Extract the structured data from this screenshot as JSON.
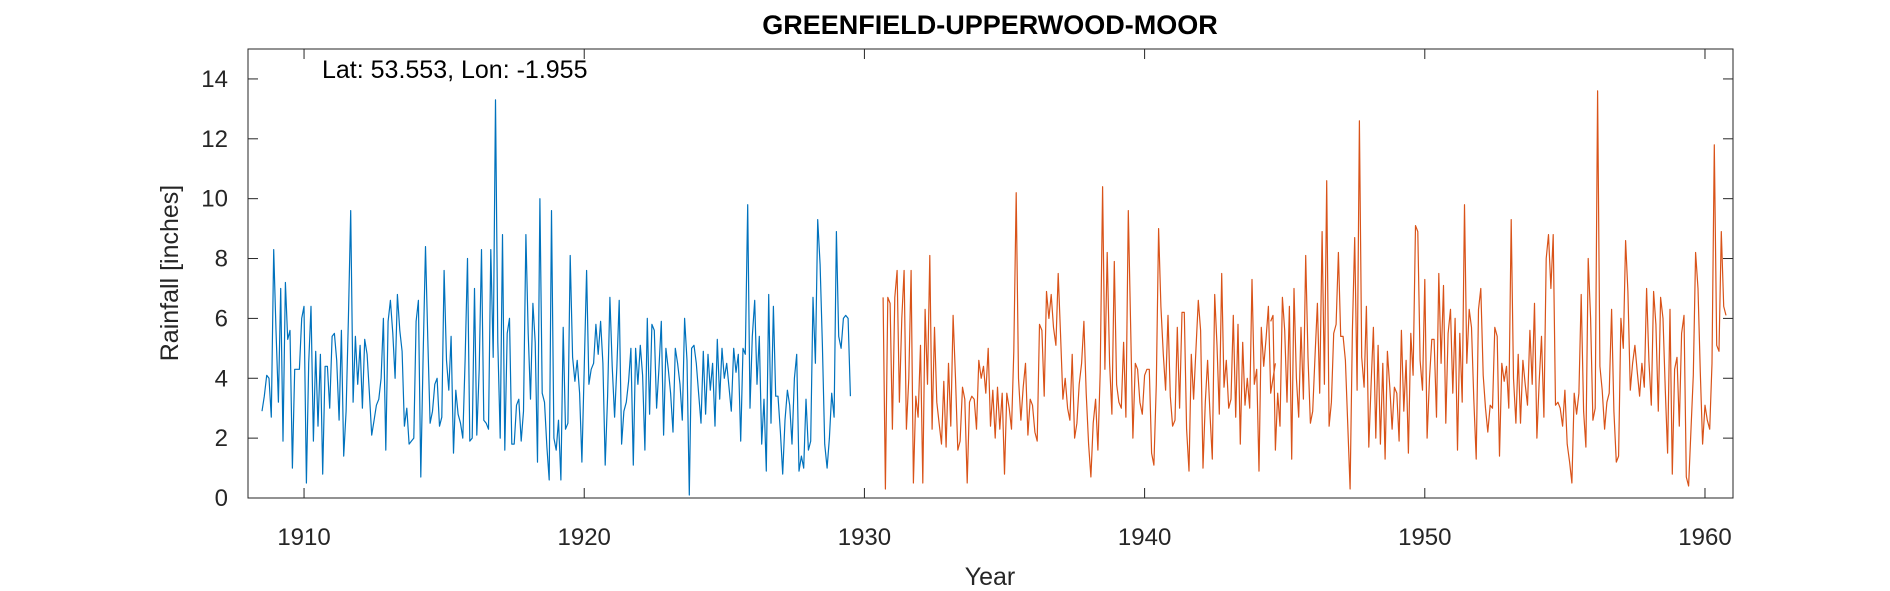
{
  "chart_data": {
    "type": "line",
    "title": "GREENFIELD-UPPERWOOD-MOOR",
    "annotation": "Lat: 53.553, Lon: -1.955",
    "xlabel": "Year",
    "ylabel": "Rainfall [inches]",
    "xlim": [
      1908.0,
      1961.0
    ],
    "ylim": [
      0,
      15
    ],
    "xticks": [
      1910,
      1920,
      1930,
      1940,
      1950,
      1960
    ],
    "yticks": [
      0,
      2,
      4,
      6,
      8,
      10,
      12,
      14
    ],
    "grid": false,
    "colors": {
      "series1": "#0072BD",
      "series2": "#D95319"
    },
    "series": [
      {
        "color": "#0072BD",
        "x_start": 1908.5,
        "x_step": 0.0833333,
        "values": [
          2.9,
          3.4,
          4.1,
          4.0,
          2.7,
          8.3,
          5.6,
          3.2,
          7.0,
          1.9,
          7.2,
          5.3,
          5.6,
          1.0,
          4.3,
          4.3,
          4.3,
          6.0,
          6.4,
          0.5,
          4.5,
          6.4,
          1.9,
          4.9,
          2.4,
          4.8,
          0.8,
          4.4,
          4.4,
          3.0,
          5.4,
          5.5,
          4.6,
          2.6,
          5.6,
          1.4,
          2.9,
          6.0,
          9.6,
          3.2,
          5.4,
          3.8,
          5.1,
          3.0,
          5.3,
          4.8,
          3.5,
          2.1,
          2.6,
          3.1,
          3.3,
          4.0,
          6.0,
          1.6,
          5.9,
          6.6,
          5.5,
          4.0,
          6.8,
          5.6,
          4.9,
          2.4,
          3.0,
          1.8,
          1.9,
          2.0,
          5.9,
          6.6,
          0.7,
          4.7,
          8.4,
          5.3,
          2.5,
          2.9,
          3.8,
          4.0,
          2.4,
          2.7,
          7.6,
          4.6,
          3.6,
          5.4,
          1.5,
          3.6,
          2.8,
          2.5,
          2.0,
          4.6,
          8.0,
          1.9,
          2.0,
          7.0,
          2.1,
          4.3,
          8.3,
          2.6,
          2.5,
          2.3,
          8.3,
          4.7,
          13.3,
          5.2,
          2.0,
          8.8,
          1.6,
          5.5,
          6.0,
          1.8,
          1.8,
          3.1,
          3.3,
          1.9,
          2.9,
          8.8,
          5.5,
          3.3,
          6.5,
          5.2,
          1.2,
          10.0,
          3.5,
          3.2,
          1.7,
          0.6,
          9.6,
          2.0,
          1.6,
          2.6,
          0.6,
          5.7,
          2.3,
          2.5,
          8.1,
          4.7,
          3.9,
          4.6,
          3.5,
          1.2,
          4.3,
          7.6,
          3.8,
          4.3,
          4.5,
          5.8,
          4.8,
          5.9,
          4.5,
          1.1,
          3.4,
          6.7,
          4.4,
          2.7,
          4.4,
          6.6,
          1.8,
          2.9,
          3.2,
          3.9,
          5.0,
          1.1,
          5.0,
          3.8,
          5.1,
          4.1,
          1.6,
          6.0,
          2.8,
          5.8,
          5.6,
          3.0,
          4.3,
          5.9,
          2.1,
          5.0,
          4.3,
          3.5,
          2.2,
          5.0,
          4.5,
          3.8,
          2.6,
          6.0,
          4.6,
          0.1,
          5.0,
          5.1,
          4.5,
          3.5,
          2.5,
          4.9,
          2.8,
          4.8,
          3.6,
          4.5,
          2.4,
          5.3,
          3.3,
          5.0,
          4.0,
          4.5,
          3.7,
          2.9,
          5.0,
          4.2,
          4.8,
          1.9,
          5.0,
          4.8,
          9.8,
          3.0,
          5.4,
          6.6,
          3.8,
          5.4,
          1.8,
          3.3,
          0.9,
          6.8,
          2.5,
          6.4,
          3.4,
          3.4,
          2.2,
          0.8,
          2.6,
          3.6,
          3.1,
          1.8,
          4.0,
          4.8,
          0.9,
          1.4,
          1.0,
          3.3,
          1.6,
          1.9,
          6.7,
          4.5,
          9.3,
          7.8,
          5.1,
          1.8,
          1.0,
          2.0,
          3.5,
          2.7,
          8.9,
          5.4,
          5.0,
          6.0,
          6.1,
          6.0,
          3.4
        ]
      },
      {
        "color": "#D95319",
        "x_start": 1930.6667,
        "x_step": 0.0833333,
        "values": [
          6.7,
          0.3,
          6.7,
          6.5,
          2.3,
          6.7,
          7.6,
          3.2,
          6.0,
          7.6,
          2.3,
          4.0,
          7.6,
          0.5,
          3.4,
          2.7,
          5.1,
          0.5,
          6.3,
          3.8,
          8.1,
          2.3,
          5.7,
          3.2,
          2.5,
          1.8,
          3.9,
          1.7,
          4.5,
          2.4,
          6.1,
          4.0,
          1.6,
          1.9,
          3.7,
          3.3,
          0.5,
          3.2,
          3.4,
          3.3,
          2.3,
          4.6,
          4.0,
          4.4,
          3.5,
          5.0,
          2.4,
          3.6,
          2.0,
          3.7,
          2.3,
          3.5,
          0.8,
          3.5,
          3.0,
          2.3,
          4.9,
          10.2,
          4.0,
          2.6,
          3.7,
          4.5,
          2.1,
          3.3,
          3.1,
          2.2,
          1.9,
          5.8,
          5.6,
          3.4,
          6.9,
          6.0,
          6.8,
          5.7,
          5.1,
          7.5,
          5.5,
          3.3,
          4.0,
          3.0,
          2.6,
          4.8,
          2.0,
          2.5,
          3.8,
          4.5,
          5.9,
          3.5,
          1.8,
          0.7,
          2.5,
          3.3,
          1.6,
          4.2,
          10.4,
          4.3,
          8.2,
          4.5,
          2.8,
          7.9,
          3.8,
          3.2,
          3.0,
          5.2,
          2.7,
          9.6,
          5.8,
          2.0,
          4.5,
          4.3,
          3.2,
          2.8,
          4.1,
          4.3,
          4.3,
          1.5,
          1.1,
          3.8,
          9.0,
          6.4,
          4.8,
          3.6,
          6.1,
          3.4,
          2.4,
          2.6,
          5.7,
          3.0,
          6.2,
          6.2,
          2.3,
          0.9,
          4.8,
          3.3,
          5.0,
          6.6,
          5.6,
          1.0,
          3.2,
          4.6,
          2.8,
          1.3,
          6.8,
          5.1,
          2.8,
          7.5,
          3.7,
          4.6,
          3.0,
          3.3,
          6.1,
          2.7,
          5.8,
          1.8,
          5.2,
          3.1,
          4.0,
          3.0,
          7.3,
          3.8,
          4.3,
          0.9,
          5.7,
          4.4,
          5.3,
          6.4,
          3.5,
          4.0,
          4.5
        ]
      },
      {
        "color": "#D95319",
        "x_start": 1944.5,
        "x_step": 0.0833333,
        "values": [
          5.9,
          6.1,
          1.6,
          3.5,
          2.4,
          6.7,
          5.6,
          3.2,
          6.4,
          1.3,
          7.0,
          4.0,
          2.7,
          5.7,
          3.3,
          8.1,
          4.7,
          2.5,
          2.9,
          4.8,
          6.5,
          3.5,
          8.9,
          3.8,
          10.6,
          2.4,
          3.2,
          5.5,
          5.8,
          8.2,
          5.4,
          5.4,
          4.6,
          2.5,
          0.3,
          5.6,
          8.7,
          3.6,
          12.6,
          4.7,
          3.7,
          6.4,
          1.7,
          3.8,
          5.7,
          2.0,
          5.1,
          1.8,
          4.5,
          1.3,
          4.9,
          3.7,
          2.3,
          3.7,
          3.5,
          1.9,
          5.6,
          2.9,
          4.6,
          1.5,
          5.5,
          4.1,
          9.1,
          8.9,
          4.6,
          3.6,
          7.3,
          2.0,
          4.0,
          5.3,
          5.3,
          2.7,
          7.5,
          4.5,
          7.1,
          2.5,
          5.5,
          6.3,
          3.5,
          6.0,
          1.6,
          5.5,
          3.2,
          9.8,
          4.5,
          6.3,
          5.7,
          3.3,
          1.3,
          6.3,
          7.0,
          4.1,
          3.0,
          2.2,
          3.1,
          3.0,
          5.7,
          5.4,
          1.4,
          4.5,
          3.9,
          4.4,
          3.0,
          9.3,
          4.0,
          2.5,
          4.8,
          2.5,
          4.6,
          3.8,
          3.1,
          5.6,
          3.8,
          6.5,
          2.0,
          3.9,
          5.4,
          2.7,
          8.0,
          8.8,
          7.0,
          8.8,
          3.1,
          3.2,
          3.0,
          2.4,
          3.6,
          1.8,
          1.2,
          0.5,
          3.5,
          2.8,
          3.5,
          6.8,
          2.9,
          1.7,
          8.0,
          6.0,
          2.6,
          3.0,
          13.6,
          4.4,
          3.6,
          2.3,
          3.2,
          3.5,
          6.3,
          2.9,
          1.2,
          1.4,
          6.0,
          5.0,
          8.6,
          6.9,
          3.6,
          4.5,
          5.1,
          4.2,
          3.4,
          4.5,
          3.7,
          7.0,
          4.6,
          3.1,
          6.9,
          5.8,
          2.9,
          6.7,
          6.0,
          3.6,
          1.5,
          6.3,
          0.8,
          4.3,
          4.7,
          2.4,
          5.5,
          6.1,
          0.7,
          0.4,
          2.3,
          4.1,
          8.2,
          7.0,
          4.2,
          1.8,
          3.1,
          2.6,
          2.3,
          4.5,
          11.8,
          5.1,
          4.9,
          8.9,
          6.4,
          6.1
        ]
      }
    ]
  }
}
